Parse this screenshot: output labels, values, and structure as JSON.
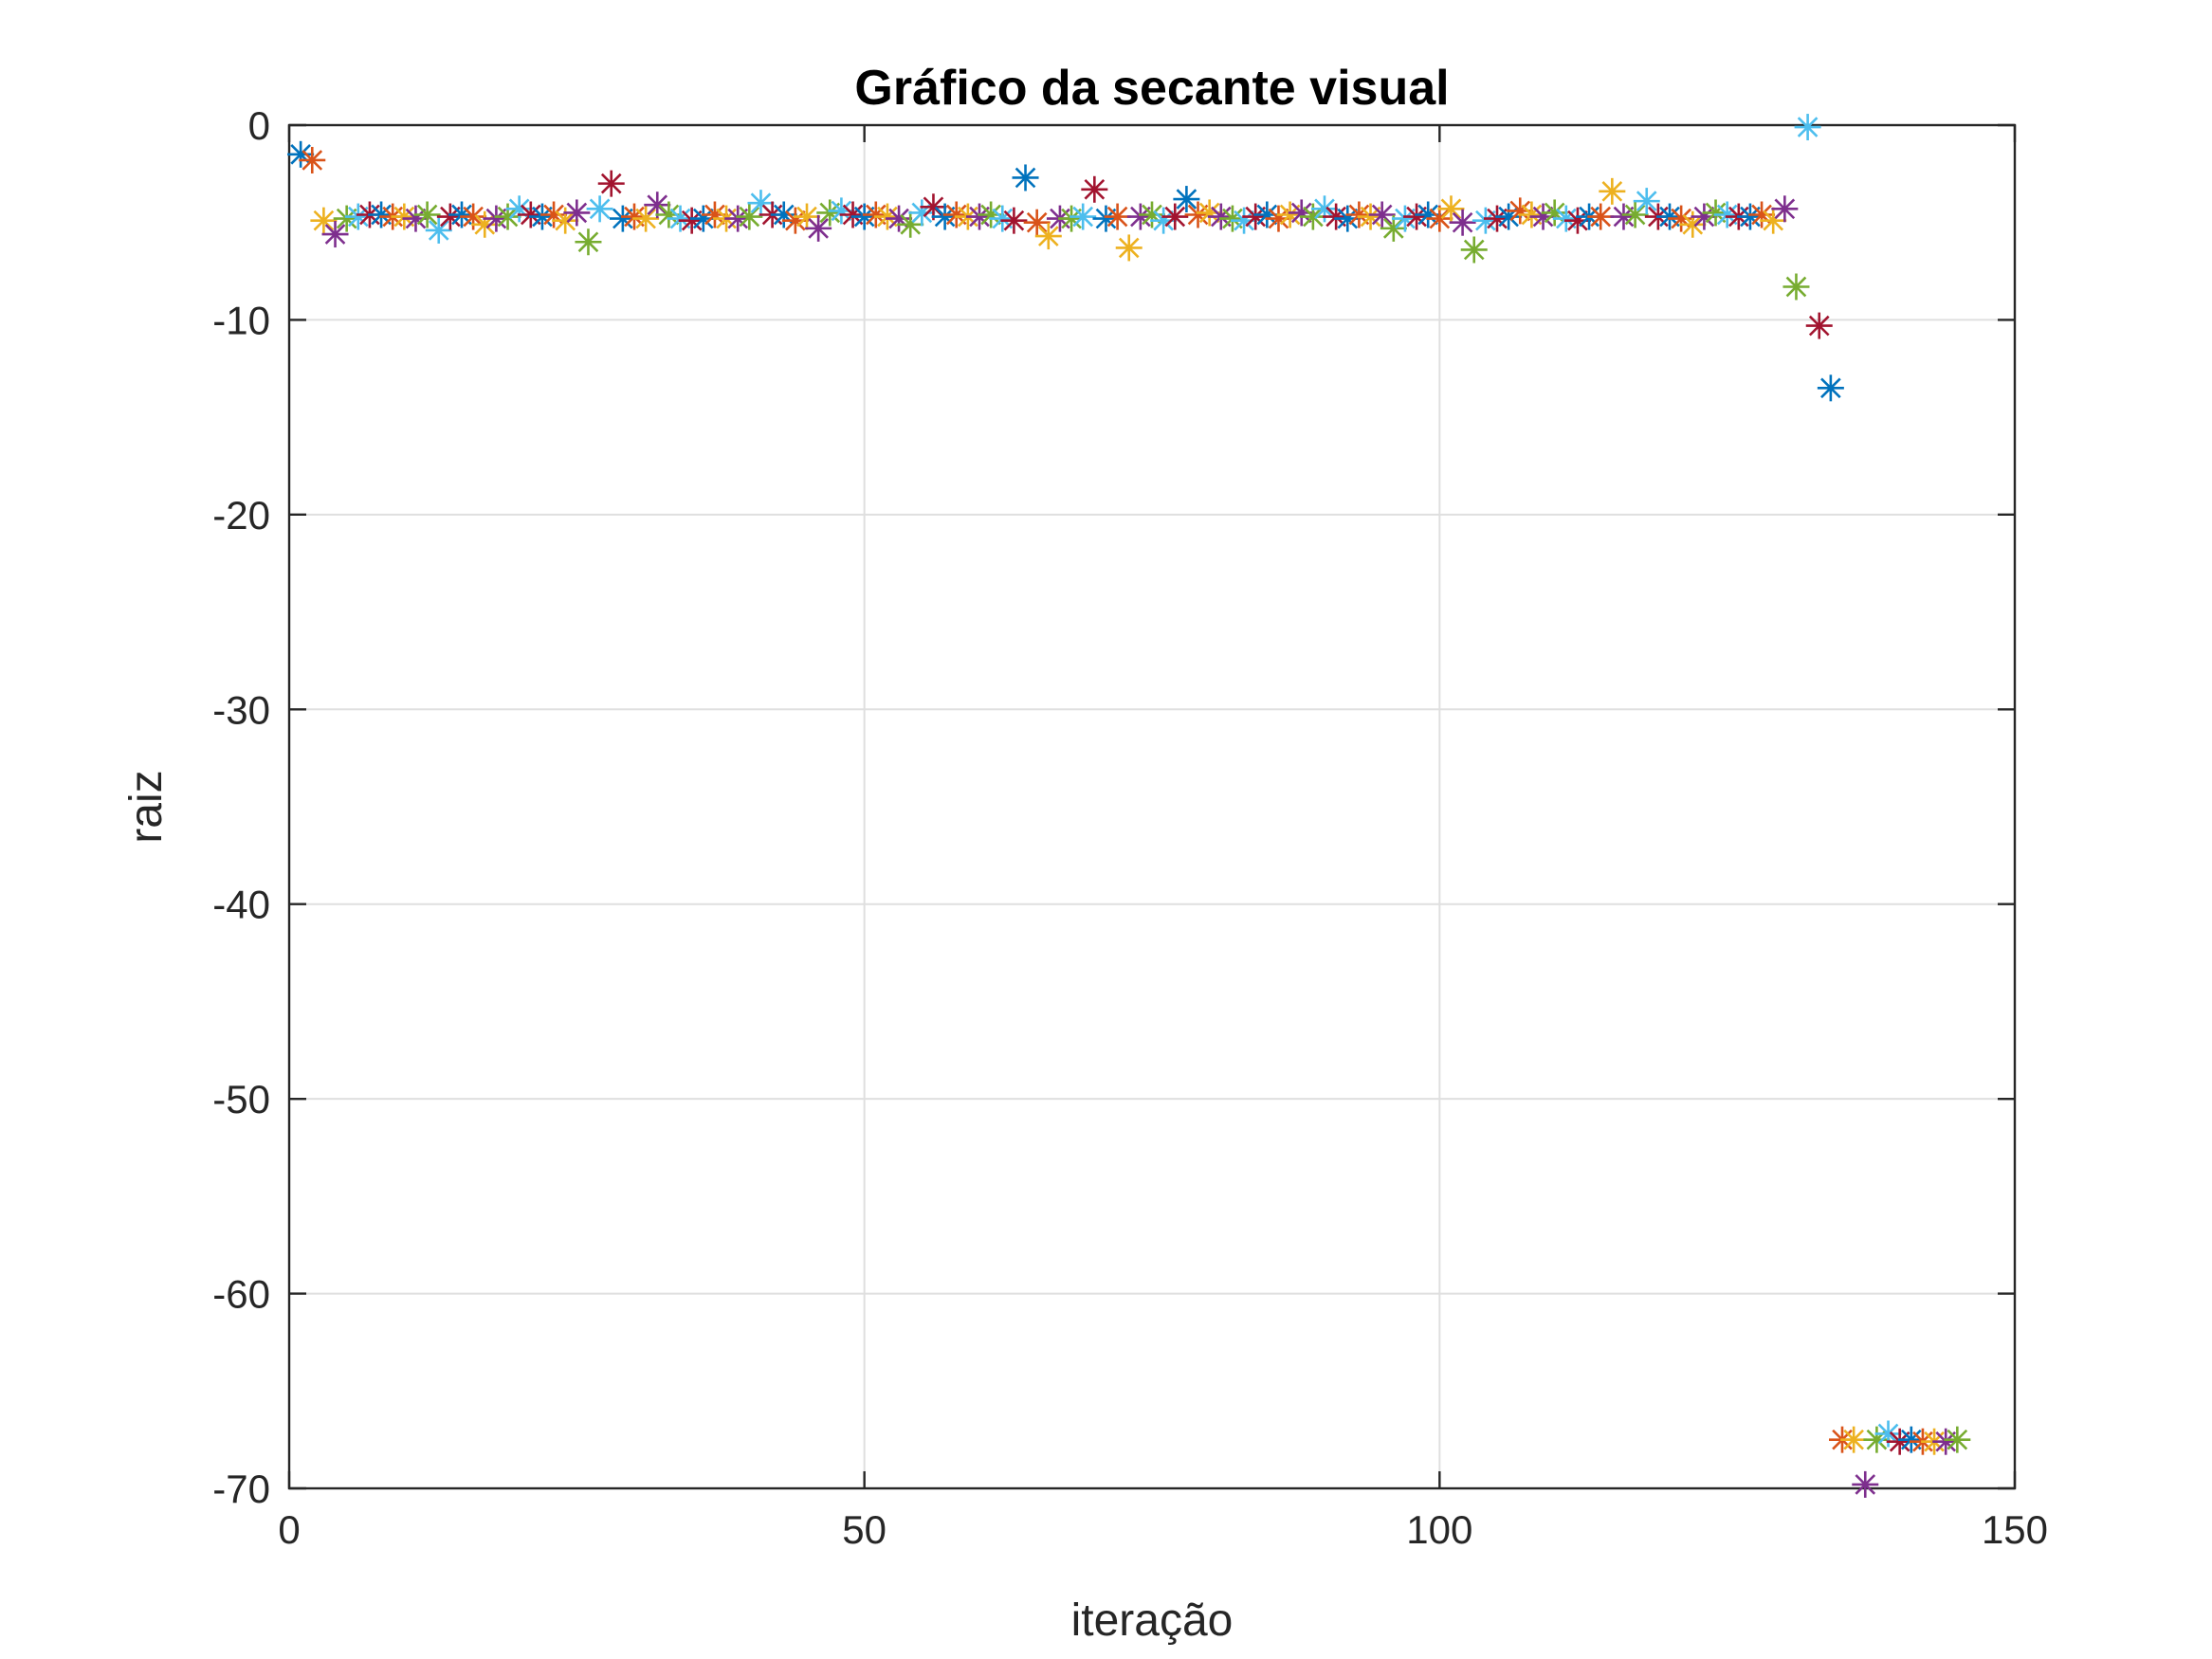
{
  "chart_data": {
    "type": "scatter",
    "title": "Gráfico da secante visual",
    "xlabel": "iteração",
    "ylabel": "raiz",
    "xlim": [
      0,
      150
    ],
    "ylim": [
      -70,
      0
    ],
    "xticks": [
      0,
      50,
      100,
      150
    ],
    "yticks": [
      0,
      -10,
      -20,
      -30,
      -40,
      -50,
      -60,
      -70
    ],
    "xtick_labels": [
      "0",
      "50",
      "100",
      "150"
    ],
    "ytick_labels": [
      "0",
      "-10",
      "-20",
      "-30",
      "-40",
      "-50",
      "-60",
      "-70"
    ],
    "grid": true,
    "marker": "asterisk",
    "color_cycle": [
      "#0072BD",
      "#D95319",
      "#EDB120",
      "#7E2F8E",
      "#77AC30",
      "#4DBEEE",
      "#A2142F"
    ],
    "x": [
      1,
      2,
      3,
      4,
      5,
      6,
      7,
      8,
      9,
      10,
      11,
      12,
      13,
      14,
      15,
      16,
      17,
      18,
      19,
      20,
      21,
      22,
      23,
      24,
      25,
      26,
      27,
      28,
      29,
      30,
      31,
      32,
      33,
      34,
      35,
      36,
      37,
      38,
      39,
      40,
      41,
      42,
      43,
      44,
      45,
      46,
      47,
      48,
      49,
      50,
      51,
      52,
      53,
      54,
      55,
      56,
      57,
      58,
      59,
      60,
      61,
      62,
      63,
      64,
      65,
      66,
      67,
      68,
      69,
      70,
      71,
      72,
      73,
      74,
      75,
      76,
      77,
      78,
      79,
      80,
      81,
      82,
      83,
      84,
      85,
      86,
      87,
      88,
      89,
      90,
      91,
      92,
      93,
      94,
      95,
      96,
      97,
      98,
      99,
      100,
      101,
      102,
      103,
      104,
      105,
      106,
      107,
      108,
      109,
      110,
      111,
      112,
      113,
      114,
      115,
      116,
      117,
      118,
      119,
      120,
      121,
      122,
      123,
      124,
      125,
      126,
      127,
      128,
      129,
      130,
      131,
      132,
      133,
      134,
      135,
      136,
      137,
      138,
      139,
      140,
      141,
      142,
      143,
      144,
      145
    ],
    "y": [
      -1.5,
      -1.8,
      -4.9,
      -5.6,
      -4.8,
      -4.7,
      -4.6,
      -4.6,
      -4.7,
      -4.7,
      -4.8,
      -4.6,
      -5.4,
      -4.7,
      -4.6,
      -4.7,
      -5.1,
      -4.8,
      -4.7,
      -4.3,
      -4.6,
      -4.7,
      -4.6,
      -4.9,
      -4.5,
      -6.0,
      -4.3,
      -3.0,
      -4.8,
      -4.7,
      -4.8,
      -4.1,
      -4.6,
      -4.8,
      -4.9,
      -4.8,
      -4.6,
      -4.8,
      -4.8,
      -4.7,
      -4.0,
      -4.6,
      -4.6,
      -4.9,
      -4.7,
      -5.3,
      -4.5,
      -4.4,
      -4.6,
      -4.7,
      -4.6,
      -4.7,
      -4.8,
      -5.1,
      -4.5,
      -4.2,
      -4.7,
      -4.6,
      -4.7,
      -4.7,
      -4.6,
      -4.8,
      -4.9,
      -2.7,
      -5.0,
      -5.7,
      -4.8,
      -4.8,
      -4.7,
      -3.3,
      -4.8,
      -4.7,
      -6.3,
      -4.7,
      -4.6,
      -4.9,
      -4.7,
      -3.8,
      -4.6,
      -4.5,
      -4.7,
      -4.8,
      -4.9,
      -4.7,
      -4.6,
      -4.8,
      -4.6,
      -4.5,
      -4.7,
      -4.3,
      -4.7,
      -4.8,
      -4.6,
      -4.7,
      -4.6,
      -5.3,
      -4.8,
      -4.7,
      -4.6,
      -4.8,
      -4.3,
      -5.0,
      -6.4,
      -4.9,
      -4.8,
      -4.7,
      -4.4,
      -4.6,
      -4.7,
      -4.5,
      -4.8,
      -4.9,
      -4.7,
      -4.7,
      -3.4,
      -4.7,
      -4.6,
      -3.9,
      -4.7,
      -4.7,
      -4.8,
      -5.1,
      -4.7,
      -4.5,
      -4.6,
      -4.7,
      -4.7,
      -4.6,
      -4.9,
      -4.3,
      -8.3,
      -0.1,
      -10.3,
      -13.5,
      -67.5,
      -67.5,
      -69.8,
      -67.5,
      -67.2,
      -67.6,
      -67.5,
      -67.6,
      -67.6,
      -67.6,
      -67.5
    ]
  }
}
